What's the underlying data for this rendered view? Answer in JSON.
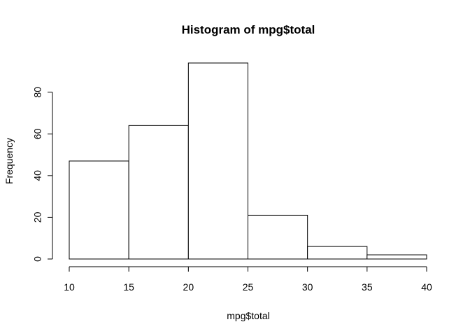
{
  "chart_data": {
    "type": "histogram",
    "title": "Histogram of mpg$total",
    "xlabel": "mpg$total",
    "ylabel": "Frequency",
    "bins": [
      {
        "start": 10,
        "end": 15,
        "count": 47
      },
      {
        "start": 15,
        "end": 20,
        "count": 64
      },
      {
        "start": 20,
        "end": 25,
        "count": 94
      },
      {
        "start": 25,
        "end": 30,
        "count": 21
      },
      {
        "start": 30,
        "end": 35,
        "count": 6
      },
      {
        "start": 35,
        "end": 40,
        "count": 2
      }
    ],
    "xlim": [
      10,
      40
    ],
    "ylim": [
      0,
      94
    ],
    "xticks": [
      10,
      15,
      20,
      25,
      30,
      35,
      40
    ],
    "yticks": [
      0,
      20,
      40,
      60,
      80
    ],
    "xtick_labels": [
      "10",
      "15",
      "20",
      "25",
      "30",
      "35",
      "40"
    ],
    "ytick_labels": [
      "0",
      "20",
      "40",
      "60",
      "80"
    ],
    "colors": {
      "background": "#ffffff",
      "bar_fill": "#ffffff",
      "bar_stroke": "#000000",
      "axis": "#000000",
      "text": "#000000"
    },
    "grid": false
  }
}
